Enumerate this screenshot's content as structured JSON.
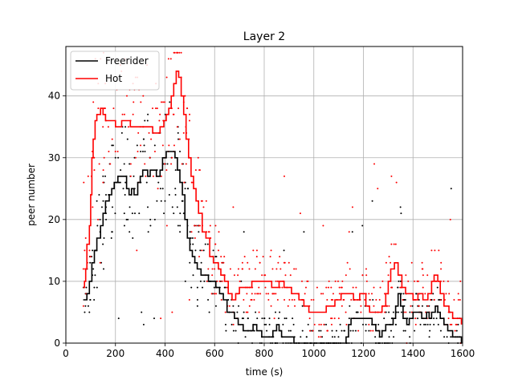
{
  "chart_data": {
    "type": "line",
    "title": "Layer 2",
    "xlabel": "time (s)",
    "ylabel": "peer number",
    "xlim": [
      0,
      1600
    ],
    "ylim": [
      0,
      48
    ],
    "xticks": [
      "0",
      "200",
      "400",
      "600",
      "800",
      "1000",
      "1200",
      "1400",
      "1600"
    ],
    "yticks": [
      "0",
      "10",
      "20",
      "30",
      "40"
    ],
    "grid": true,
    "legend_position": "top-left",
    "series": [
      {
        "name": "Freerider",
        "color": "#000000",
        "step": [
          [
            70,
            7
          ],
          [
            85,
            8
          ],
          [
            95,
            10
          ],
          [
            105,
            13
          ],
          [
            115,
            15
          ],
          [
            125,
            17
          ],
          [
            140,
            19
          ],
          [
            150,
            21
          ],
          [
            160,
            23
          ],
          [
            175,
            24
          ],
          [
            185,
            25
          ],
          [
            195,
            26
          ],
          [
            210,
            27
          ],
          [
            235,
            27
          ],
          [
            245,
            25
          ],
          [
            255,
            24
          ],
          [
            265,
            25
          ],
          [
            275,
            24
          ],
          [
            290,
            26
          ],
          [
            300,
            27
          ],
          [
            310,
            28
          ],
          [
            330,
            27
          ],
          [
            340,
            28
          ],
          [
            355,
            28
          ],
          [
            365,
            27
          ],
          [
            380,
            28
          ],
          [
            390,
            30
          ],
          [
            405,
            31
          ],
          [
            425,
            31
          ],
          [
            440,
            30
          ],
          [
            450,
            28
          ],
          [
            460,
            26
          ],
          [
            470,
            24
          ],
          [
            480,
            20
          ],
          [
            490,
            17
          ],
          [
            500,
            15
          ],
          [
            510,
            14
          ],
          [
            520,
            13
          ],
          [
            530,
            12
          ],
          [
            545,
            11
          ],
          [
            560,
            11
          ],
          [
            575,
            10
          ],
          [
            590,
            10
          ],
          [
            605,
            9
          ],
          [
            620,
            8
          ],
          [
            635,
            7
          ],
          [
            650,
            5
          ],
          [
            665,
            5
          ],
          [
            680,
            4
          ],
          [
            695,
            3
          ],
          [
            715,
            2
          ],
          [
            735,
            2
          ],
          [
            755,
            3
          ],
          [
            770,
            2
          ],
          [
            790,
            1
          ],
          [
            820,
            1
          ],
          [
            835,
            2
          ],
          [
            850,
            3
          ],
          [
            860,
            2
          ],
          [
            870,
            1
          ],
          [
            920,
            0
          ],
          [
            1120,
            0
          ],
          [
            1130,
            1
          ],
          [
            1140,
            3
          ],
          [
            1150,
            4
          ],
          [
            1225,
            4
          ],
          [
            1235,
            3
          ],
          [
            1250,
            2
          ],
          [
            1265,
            1
          ],
          [
            1275,
            2
          ],
          [
            1290,
            3
          ],
          [
            1320,
            4
          ],
          [
            1330,
            6
          ],
          [
            1340,
            8
          ],
          [
            1350,
            6
          ],
          [
            1360,
            4
          ],
          [
            1375,
            3
          ],
          [
            1385,
            4
          ],
          [
            1400,
            5
          ],
          [
            1420,
            5
          ],
          [
            1435,
            4
          ],
          [
            1455,
            5
          ],
          [
            1465,
            4
          ],
          [
            1475,
            5
          ],
          [
            1490,
            6
          ],
          [
            1500,
            5
          ],
          [
            1510,
            4
          ],
          [
            1525,
            3
          ],
          [
            1540,
            2
          ],
          [
            1560,
            1
          ],
          [
            1580,
            1
          ],
          [
            1595,
            0
          ]
        ]
      },
      {
        "name": "Hot",
        "color": "#ff0000",
        "step": [
          [
            70,
            9
          ],
          [
            75,
            10
          ],
          [
            80,
            12
          ],
          [
            85,
            16
          ],
          [
            95,
            19
          ],
          [
            100,
            24
          ],
          [
            105,
            30
          ],
          [
            110,
            33
          ],
          [
            118,
            36
          ],
          [
            125,
            37
          ],
          [
            140,
            38
          ],
          [
            150,
            37
          ],
          [
            160,
            36
          ],
          [
            190,
            36
          ],
          [
            200,
            35
          ],
          [
            225,
            36
          ],
          [
            260,
            35
          ],
          [
            330,
            35
          ],
          [
            350,
            34
          ],
          [
            380,
            35
          ],
          [
            395,
            36
          ],
          [
            405,
            37
          ],
          [
            415,
            38
          ],
          [
            425,
            40
          ],
          [
            435,
            42
          ],
          [
            445,
            44
          ],
          [
            455,
            43
          ],
          [
            465,
            40
          ],
          [
            475,
            37
          ],
          [
            485,
            33
          ],
          [
            495,
            30
          ],
          [
            505,
            27
          ],
          [
            515,
            25
          ],
          [
            525,
            23
          ],
          [
            535,
            21
          ],
          [
            550,
            18
          ],
          [
            565,
            17
          ],
          [
            580,
            14
          ],
          [
            595,
            13
          ],
          [
            605,
            13
          ],
          [
            615,
            12
          ],
          [
            625,
            11
          ],
          [
            640,
            10
          ],
          [
            655,
            8
          ],
          [
            670,
            7
          ],
          [
            685,
            8
          ],
          [
            700,
            9
          ],
          [
            730,
            9
          ],
          [
            750,
            10
          ],
          [
            800,
            10
          ],
          [
            830,
            9
          ],
          [
            860,
            10
          ],
          [
            880,
            9
          ],
          [
            910,
            8
          ],
          [
            940,
            7
          ],
          [
            960,
            6
          ],
          [
            980,
            5
          ],
          [
            1000,
            5
          ],
          [
            1040,
            5
          ],
          [
            1050,
            6
          ],
          [
            1070,
            6
          ],
          [
            1085,
            7
          ],
          [
            1100,
            7
          ],
          [
            1110,
            8
          ],
          [
            1140,
            8
          ],
          [
            1160,
            7
          ],
          [
            1185,
            8
          ],
          [
            1210,
            6
          ],
          [
            1225,
            5
          ],
          [
            1260,
            5
          ],
          [
            1275,
            6
          ],
          [
            1290,
            8
          ],
          [
            1300,
            10
          ],
          [
            1310,
            12
          ],
          [
            1325,
            13
          ],
          [
            1340,
            11
          ],
          [
            1355,
            9
          ],
          [
            1370,
            8
          ],
          [
            1400,
            7
          ],
          [
            1420,
            8
          ],
          [
            1440,
            7
          ],
          [
            1460,
            8
          ],
          [
            1475,
            10
          ],
          [
            1485,
            11
          ],
          [
            1500,
            10
          ],
          [
            1510,
            8
          ],
          [
            1525,
            6
          ],
          [
            1545,
            5
          ],
          [
            1560,
            4
          ],
          [
            1580,
            4
          ],
          [
            1595,
            3
          ]
        ]
      }
    ]
  }
}
